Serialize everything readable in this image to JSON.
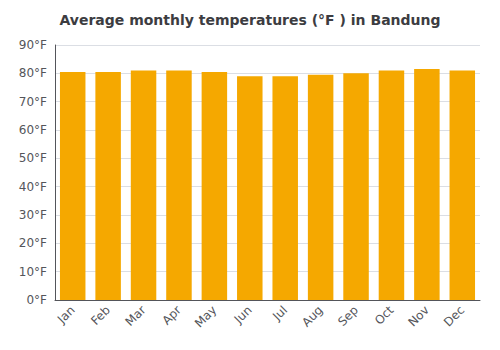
{
  "chart_data": {
    "type": "bar",
    "title": "Average monthly temperatures (°F ) in Bandung",
    "categories": [
      "Jan",
      "Feb",
      "Mar",
      "Apr",
      "May",
      "Jun",
      "Jul",
      "Aug",
      "Sep",
      "Oct",
      "Nov",
      "Dec"
    ],
    "values": [
      80.5,
      80.5,
      81.0,
      81.0,
      80.5,
      79.0,
      79.0,
      79.5,
      80.0,
      81.0,
      81.5,
      81.0
    ],
    "color": "#F5A800",
    "ylim": [
      0,
      90
    ],
    "yticks": [
      {
        "value": 0,
        "label": "0°F"
      },
      {
        "value": 10,
        "label": "10°F"
      },
      {
        "value": 20,
        "label": "20°F"
      },
      {
        "value": 30,
        "label": "30°F"
      },
      {
        "value": 40,
        "label": "40°F"
      },
      {
        "value": 50,
        "label": "50°F"
      },
      {
        "value": 60,
        "label": "60°F"
      },
      {
        "value": 70,
        "label": "70°F"
      },
      {
        "value": 80,
        "label": "80°F"
      },
      {
        "value": 90,
        "label": "90°F"
      }
    ],
    "grid": true
  }
}
